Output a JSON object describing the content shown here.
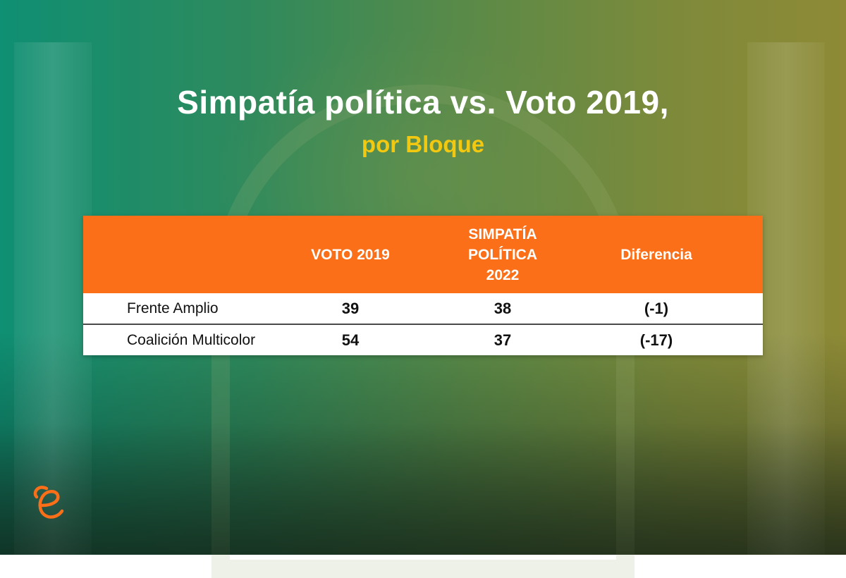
{
  "title": "Simpatía política vs. Voto 2019,",
  "subtitle": "por Bloque",
  "colors": {
    "header_bg": "#fc6f19",
    "title_text": "#ffffff",
    "subtitle_text": "#f2c811",
    "logo": "#fc6f19"
  },
  "chart_data": {
    "type": "table",
    "title": "Simpatía política vs. Voto 2019,",
    "subtitle": "por Bloque",
    "columns": [
      "",
      "VOTO 2019",
      "SIMPATÍA POLÍTICA 2022",
      "Diferencia"
    ],
    "header": {
      "voto": "VOTO 2019",
      "simpatia_line1": "SIMPATÍA",
      "simpatia_line2": "POLÍTICA",
      "simpatia_line3": "2022",
      "diferencia": "Diferencia"
    },
    "rows": [
      {
        "name": "Frente Amplio",
        "voto_2019": "39",
        "simpatia_2022": "38",
        "diferencia": "(-1)"
      },
      {
        "name": "Coalición Multicolor",
        "voto_2019": "54",
        "simpatia_2022": "37",
        "diferencia": "(-17)"
      }
    ]
  },
  "logo": {
    "icon": "e-logo-icon"
  }
}
